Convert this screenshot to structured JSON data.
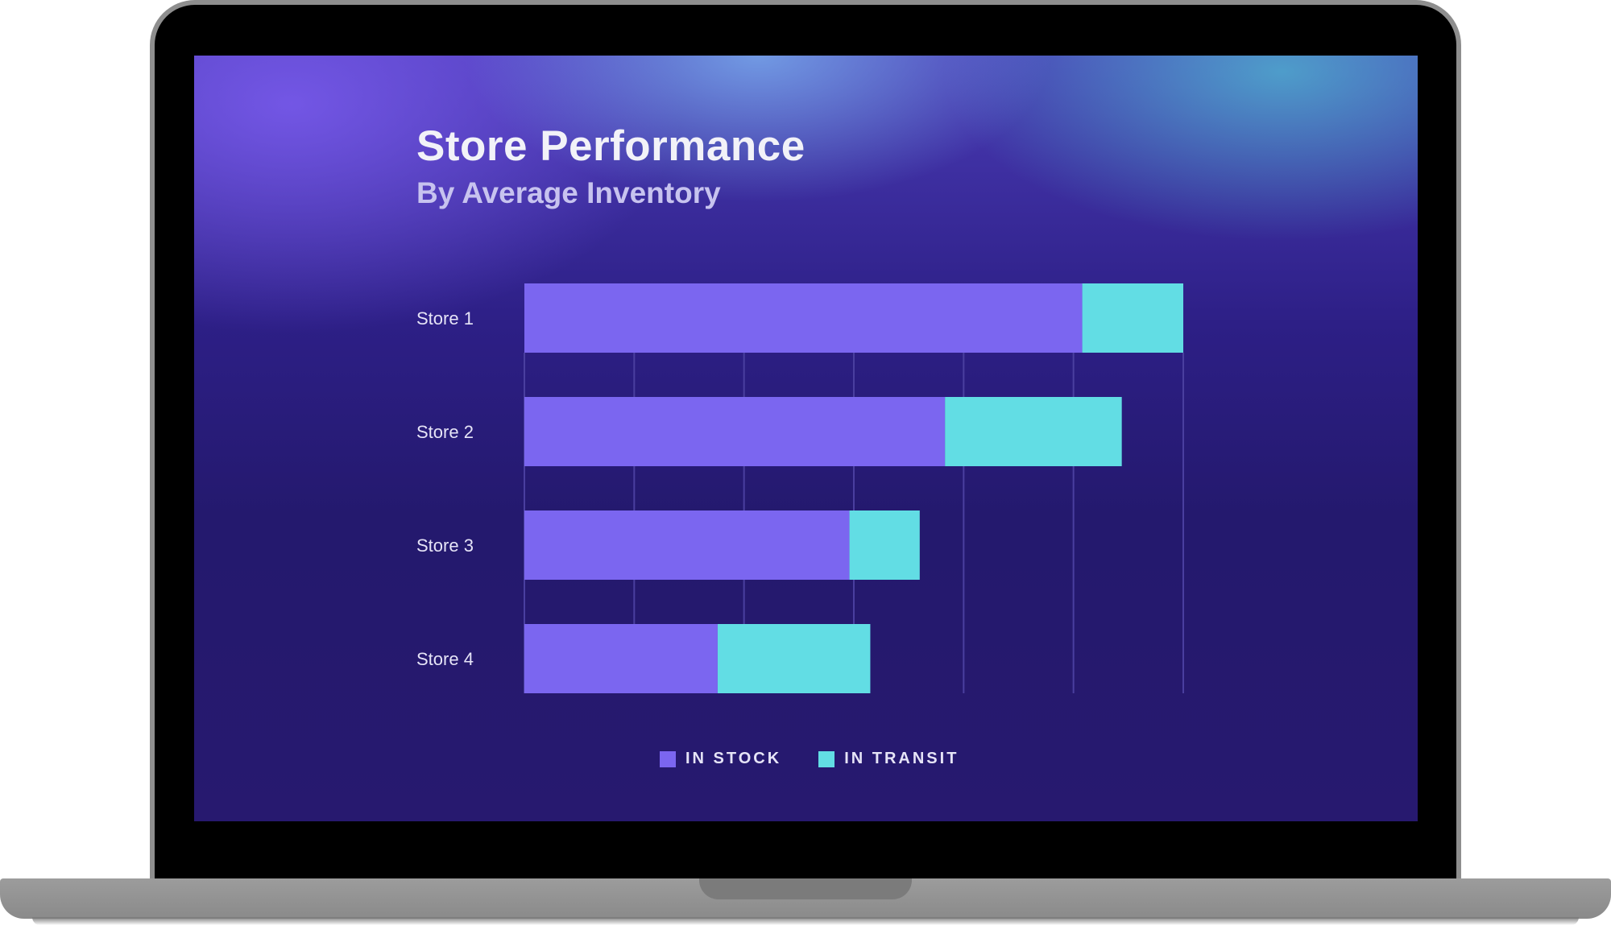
{
  "colors": {
    "in_stock": "#7b66f0",
    "in_transit": "#62dde4",
    "grid": "#4a3f9f"
  },
  "chart_data": {
    "type": "bar",
    "orientation": "horizontal",
    "stacked": true,
    "title": "Store Performance",
    "subtitle": "By Average Inventory",
    "categories": [
      "Store 1",
      "Store 2",
      "Store 3",
      "Store 4"
    ],
    "series": [
      {
        "name": "IN STOCK",
        "values": [
          5.08,
          3.83,
          2.96,
          1.76
        ]
      },
      {
        "name": "IN TRANSIT",
        "values": [
          0.92,
          1.61,
          0.64,
          1.39
        ]
      }
    ],
    "xlim": [
      0,
      6
    ],
    "grid": true,
    "legend": "bottom-center"
  }
}
